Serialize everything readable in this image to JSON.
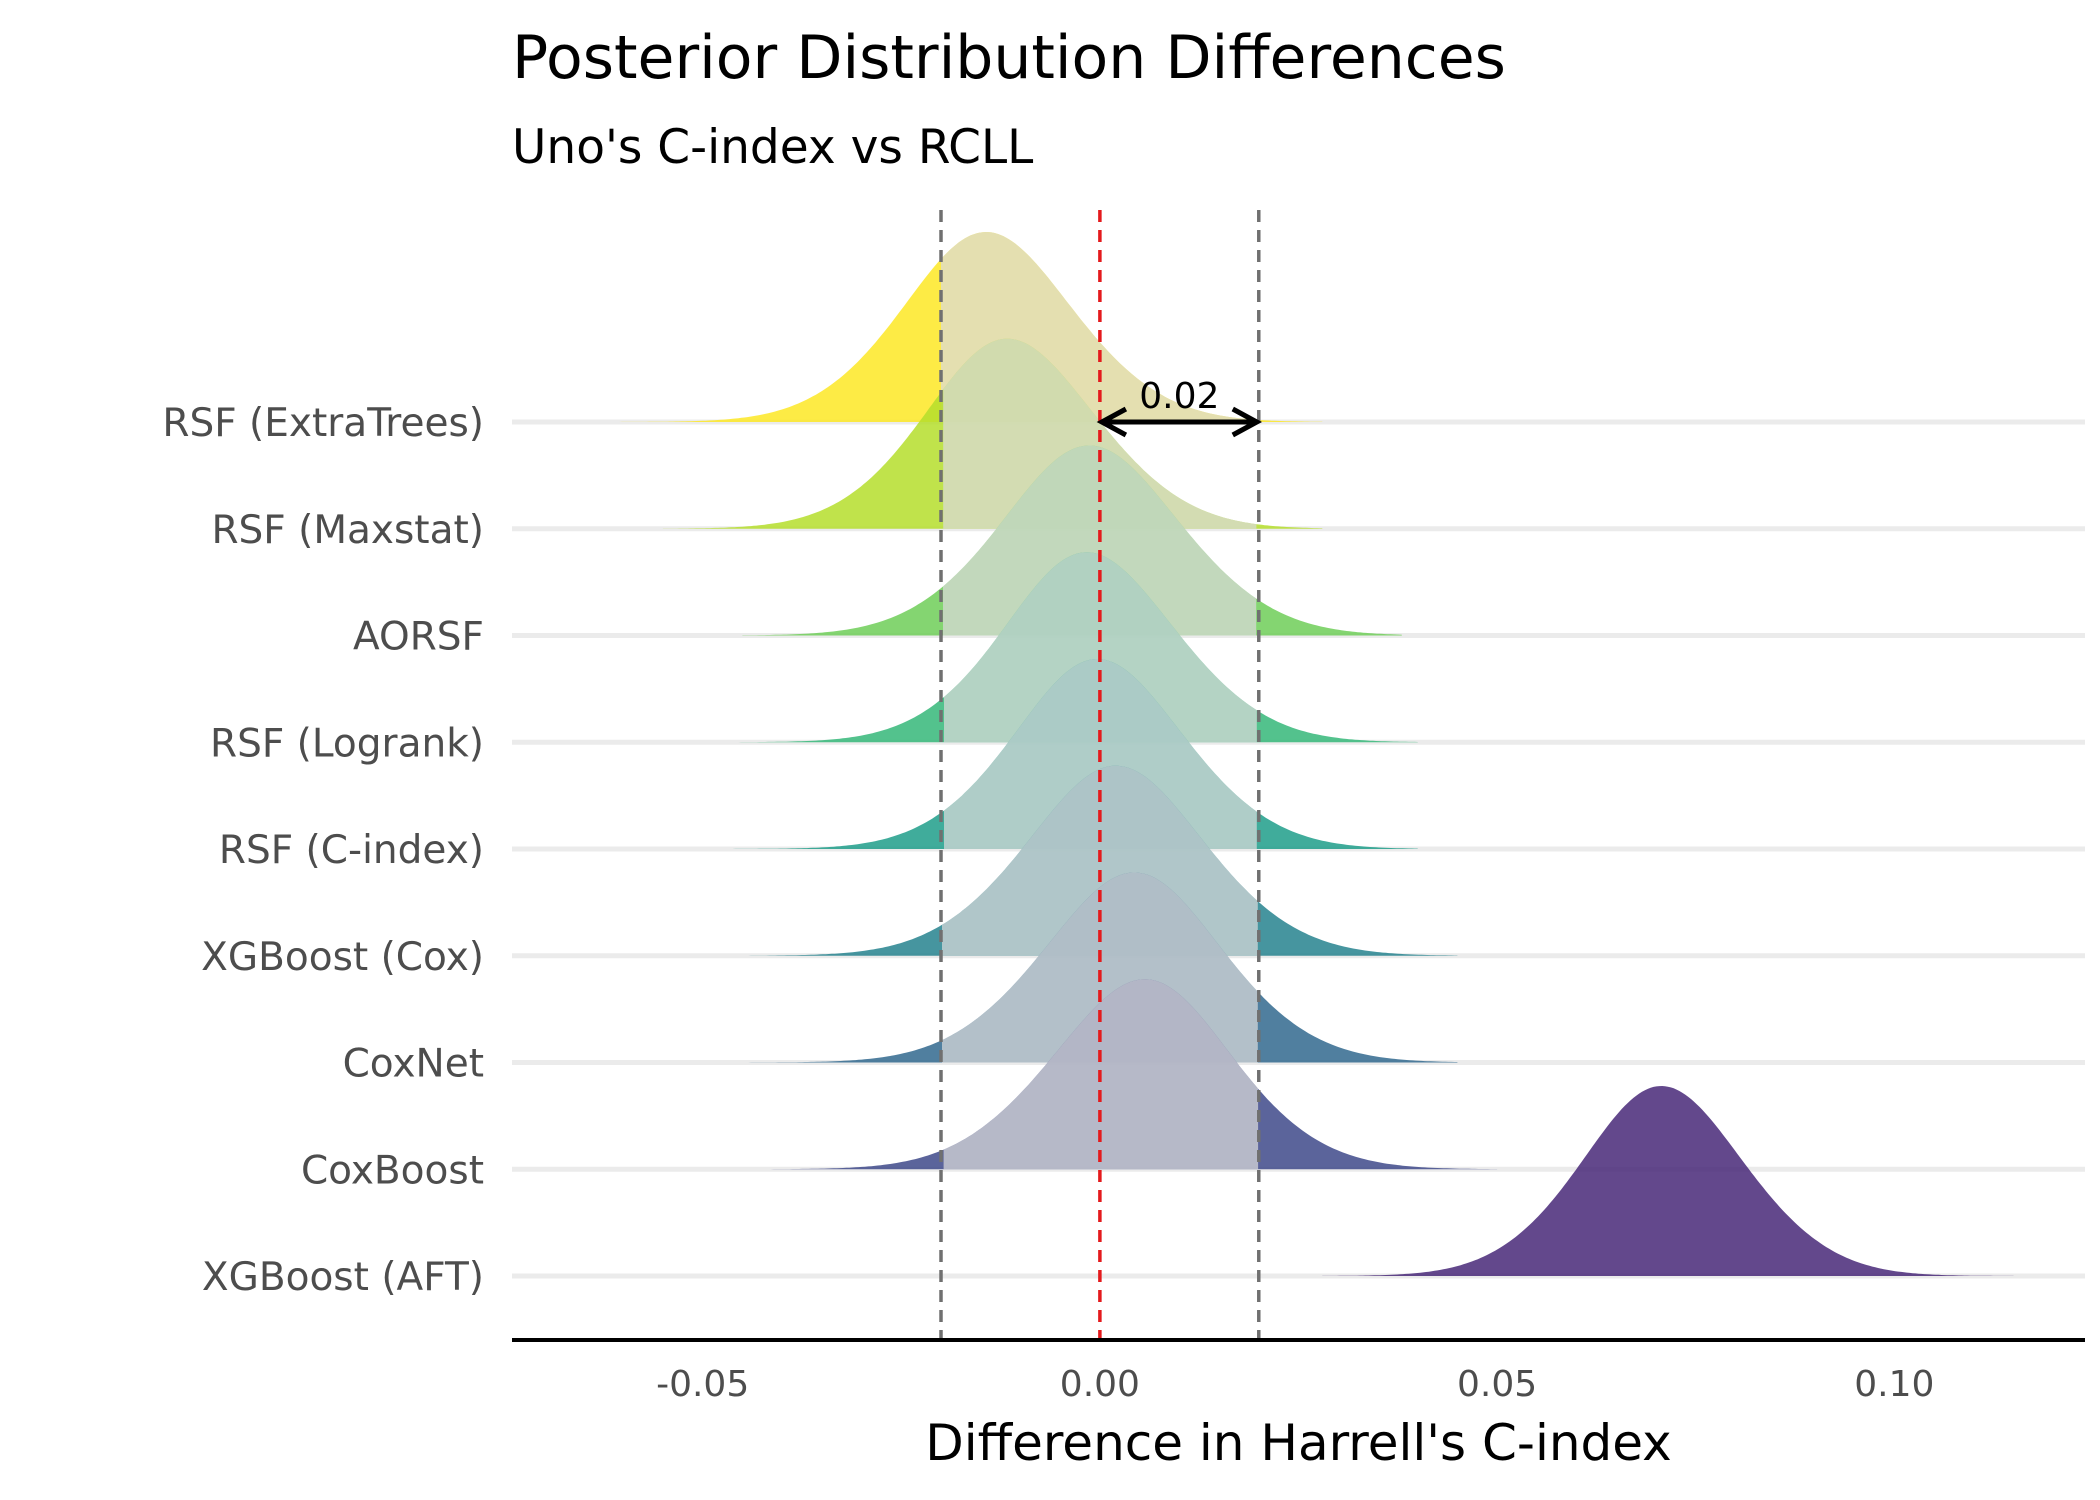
{
  "chart_data": {
    "type": "ridgeline",
    "title": "Posterior Distribution Differences",
    "subtitle": "Uno's C-index vs RCLL",
    "xlabel": "Difference in Harrell's C-index",
    "ylabel": "",
    "xlim": [
      -0.074,
      0.124
    ],
    "xticks": [
      -0.05,
      0.0,
      0.05,
      0.1
    ],
    "xtick_labels": [
      "-0.05",
      "0.00",
      "0.05",
      "0.10"
    ],
    "grid": "horizontal baselines only",
    "reference_lines": {
      "zero": {
        "x": 0.0,
        "color": "#e41a1c",
        "style": "dashed"
      },
      "rope": {
        "x": [
          -0.02,
          0.02
        ],
        "color": "#707070",
        "style": "dashed"
      }
    },
    "annotation": {
      "label": "0.02",
      "from": 0.0,
      "to": 0.02,
      "arrow": "double-headed"
    },
    "mask_color": "#d9d9d9",
    "series": [
      {
        "name": "RSF (ExtraTrees)",
        "color": "#fde725",
        "mean": -0.014,
        "sd": 0.0115,
        "mode_x": -0.015,
        "min": -0.062,
        "max": 0.028
      },
      {
        "name": "RSF (Maxstat)",
        "color": "#b5de2b",
        "mean": -0.011,
        "sd": 0.0115,
        "mode_x": -0.013,
        "min": -0.055,
        "max": 0.028
      },
      {
        "name": "AORSF",
        "color": "#6ece58",
        "mean": -0.001,
        "sd": 0.012,
        "mode_x": -0.002,
        "min": -0.045,
        "max": 0.038
      },
      {
        "name": "RSF (Logrank)",
        "color": "#35b779",
        "mean": -0.001,
        "sd": 0.0115,
        "mode_x": -0.003,
        "min": -0.05,
        "max": 0.04
      },
      {
        "name": "RSF (C-index)",
        "color": "#1f9e89",
        "mean": 0.0,
        "sd": 0.0115,
        "mode_x": -0.001,
        "min": -0.05,
        "max": 0.04
      },
      {
        "name": "XGBoost (Cox)",
        "color": "#26828e",
        "mean": 0.002,
        "sd": 0.012,
        "mode_x": 0.002,
        "min": -0.045,
        "max": 0.045
      },
      {
        "name": "CoxNet",
        "color": "#31688e",
        "mean": 0.004,
        "sd": 0.012,
        "mode_x": 0.005,
        "min": -0.045,
        "max": 0.045
      },
      {
        "name": "CoxBoost",
        "color": "#3e4989",
        "mean": 0.005,
        "sd": 0.012,
        "mode_x": 0.007,
        "min": -0.045,
        "max": 0.05
      },
      {
        "name": "XGBoost (AFT)",
        "color": "#482878",
        "mean": 0.071,
        "sd": 0.011,
        "mode_x": 0.07,
        "min": 0.028,
        "max": 0.115
      }
    ]
  }
}
